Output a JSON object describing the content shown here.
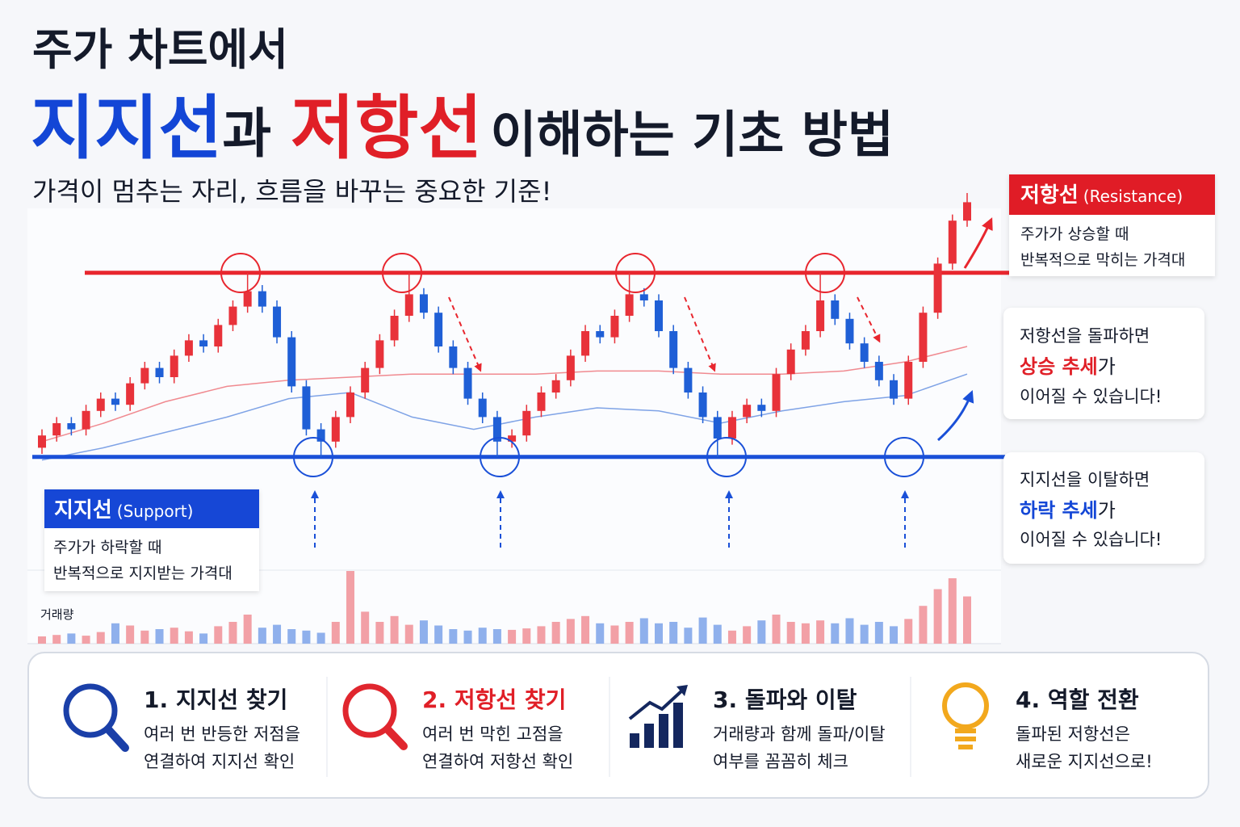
{
  "header": {
    "title_line1": "주가 차트에서",
    "title_support": "지지선",
    "title_and": "과",
    "title_resistance": "저항선",
    "title_rest": "이해하는 기초 방법",
    "subtitle": "가격이 멈추는 자리, 흐름을 바꾸는 중요한 기준!"
  },
  "chart_data": {
    "type": "candlestick",
    "ylim": [
      0,
      100
    ],
    "open": [
      12,
      16,
      20,
      18,
      24,
      28,
      26,
      33,
      38,
      35,
      42,
      47,
      45,
      52,
      58,
      63,
      58,
      48,
      32,
      18,
      14,
      22,
      30,
      38,
      47,
      55,
      62,
      56,
      45,
      38,
      28,
      22,
      14,
      16,
      24,
      30,
      34,
      42,
      50,
      48,
      55,
      62,
      60,
      50,
      38,
      30,
      22,
      15,
      22,
      26,
      24,
      36,
      44,
      50,
      60,
      54,
      46,
      40,
      34,
      28,
      40,
      56,
      72,
      86
    ],
    "high": [
      18,
      22,
      22,
      26,
      30,
      30,
      35,
      40,
      40,
      44,
      49,
      49,
      54,
      60,
      69,
      65,
      60,
      50,
      34,
      20,
      24,
      32,
      40,
      49,
      57,
      69,
      64,
      58,
      47,
      40,
      30,
      24,
      18,
      26,
      32,
      36,
      44,
      52,
      52,
      57,
      69,
      64,
      62,
      52,
      40,
      32,
      24,
      24,
      28,
      28,
      38,
      46,
      52,
      69,
      62,
      56,
      48,
      42,
      36,
      42,
      58,
      74,
      88,
      95
    ],
    "low": [
      10,
      14,
      16,
      16,
      22,
      24,
      24,
      31,
      33,
      33,
      40,
      43,
      43,
      50,
      56,
      56,
      46,
      30,
      16,
      9,
      12,
      20,
      28,
      36,
      45,
      53,
      54,
      43,
      36,
      26,
      20,
      9,
      12,
      14,
      22,
      28,
      32,
      40,
      46,
      46,
      53,
      58,
      48,
      36,
      28,
      20,
      9,
      13,
      20,
      22,
      22,
      34,
      42,
      48,
      52,
      44,
      38,
      32,
      26,
      26,
      38,
      54,
      70,
      84
    ],
    "close": [
      16,
      20,
      18,
      24,
      28,
      26,
      33,
      38,
      35,
      42,
      47,
      45,
      52,
      58,
      63,
      58,
      48,
      32,
      18,
      14,
      22,
      30,
      38,
      47,
      55,
      62,
      56,
      45,
      38,
      28,
      22,
      14,
      16,
      24,
      30,
      34,
      42,
      50,
      48,
      55,
      62,
      60,
      50,
      38,
      30,
      22,
      15,
      22,
      26,
      24,
      36,
      44,
      50,
      60,
      54,
      46,
      40,
      34,
      28,
      40,
      56,
      72,
      86,
      92
    ],
    "up_color": "#e8323a",
    "down_color": "#1f5fd6",
    "moving_averages": [
      {
        "color": "#f08a90",
        "values": [
          14,
          20,
          27,
          32,
          34,
          35,
          36,
          36,
          36,
          37,
          37,
          36,
          36,
          37,
          40,
          45
        ]
      },
      {
        "color": "#7fa3e6",
        "values": [
          8,
          12,
          17,
          22,
          28,
          30,
          22,
          18,
          22,
          25,
          24,
          20,
          24,
          27,
          29,
          36
        ]
      }
    ],
    "resistance": 69,
    "resistance_color": "#e8262e",
    "support": 9,
    "support_color": "#1a50d8",
    "volume_label": "거래량",
    "volume_ylim": [
      0,
      100
    ],
    "volume": [
      10,
      12,
      14,
      11,
      16,
      28,
      25,
      18,
      20,
      22,
      17,
      14,
      24,
      30,
      40,
      22,
      26,
      20,
      18,
      15,
      30,
      100,
      44,
      30,
      38,
      26,
      32,
      25,
      20,
      18,
      22,
      20,
      19,
      21,
      24,
      30,
      34,
      38,
      28,
      25,
      30,
      35,
      28,
      30,
      22,
      36,
      26,
      18,
      24,
      32,
      40,
      30,
      28,
      32,
      28,
      35,
      26,
      30,
      24,
      34,
      52,
      75,
      90,
      65
    ],
    "volume_up_color": "#f2a0a6",
    "volume_down_color": "#8fb0ec"
  },
  "callouts": {
    "resistance": {
      "title": "저항선",
      "english": "(Resistance)",
      "lines": [
        "주가가 상승할 때",
        "반복적으로 막히는 가격대"
      ]
    },
    "support": {
      "title": "지지선",
      "english": "(Support)",
      "lines": [
        "주가가 하락할 때",
        "반복적으로 지지받는 가격대"
      ]
    },
    "breakout": {
      "line1": "저항선을 돌파하면",
      "highlight": "상승 추세",
      "suffix": "가",
      "line3": "이어질 수 있습니다!"
    },
    "breakdown": {
      "line1": "지지선을 이탈하면",
      "highlight": "하락 추세",
      "suffix": "가",
      "line3": "이어질 수 있습니다!"
    }
  },
  "cards": [
    {
      "title": "1. 지지선 찾기",
      "lines": [
        "여러 번 반등한 저점을",
        "연결하여 지지선 확인"
      ]
    },
    {
      "title": "2. 저항선 찾기",
      "lines": [
        "여러 번 막힌 고점을",
        "연결하여 저항선 확인"
      ]
    },
    {
      "title": "3. 돌파와 이탈",
      "lines": [
        "거래량과 함께 돌파/이탈",
        "여부를 꼼꼼히 체크"
      ]
    },
    {
      "title": "4. 역할 전환",
      "lines": [
        "돌파된 저항선은",
        "새로운 지지선으로!"
      ]
    }
  ]
}
